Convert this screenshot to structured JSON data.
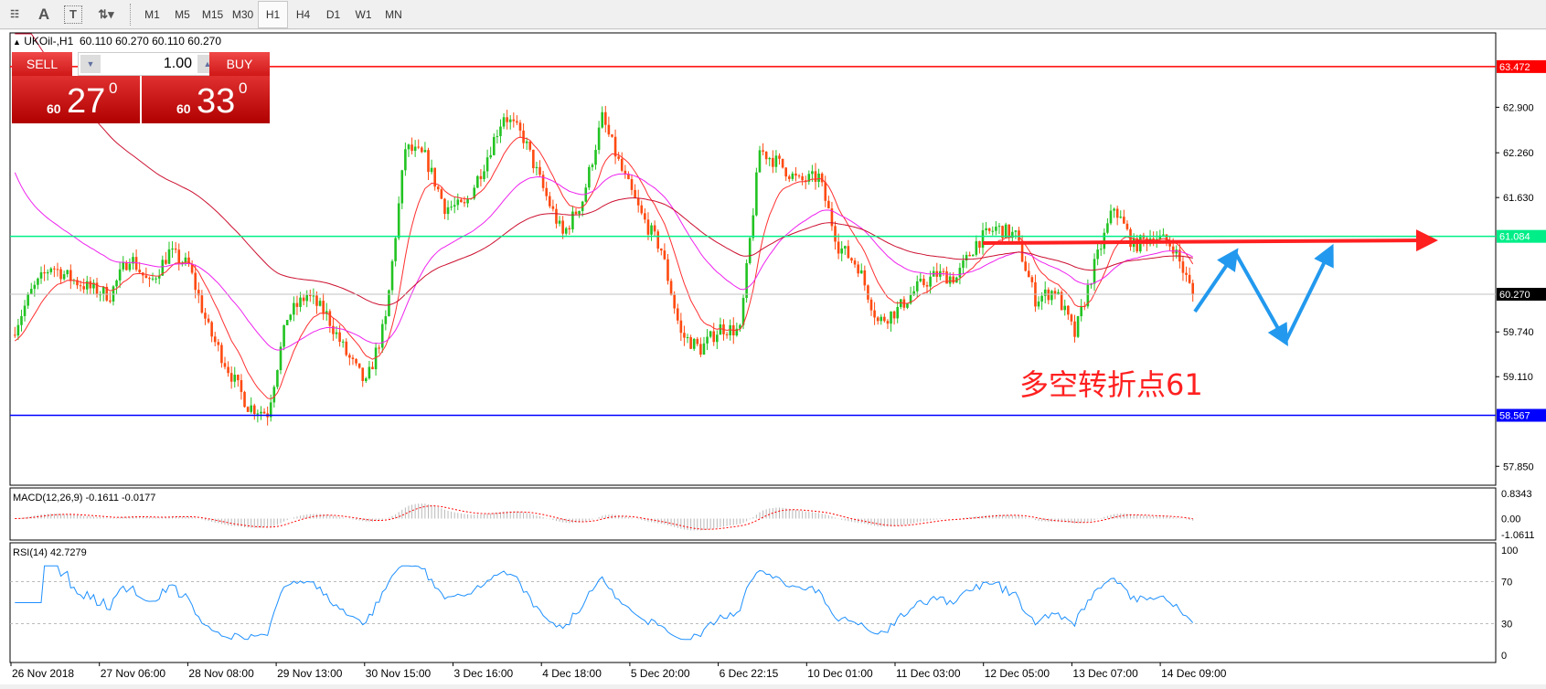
{
  "toolbar": {
    "icons": [
      "periods-separator-icon",
      "text-icon",
      "text-label-icon",
      "arrows-icon"
    ],
    "timeframes": [
      "M1",
      "M5",
      "M15",
      "M30",
      "H1",
      "H4",
      "D1",
      "W1",
      "MN"
    ],
    "active": "H1"
  },
  "chart_header": {
    "symbol": "UKOil-,H1",
    "ohlc": "60.110 60.270 60.110 60.270"
  },
  "trade_panel": {
    "sell_label": "SELL",
    "buy_label": "BUY",
    "lot": "1.00",
    "sell_price": {
      "big_prefix": "60",
      "main": "27",
      "sup": "0"
    },
    "buy_price": {
      "big_prefix": "60",
      "main": "33",
      "sup": "0"
    }
  },
  "price_axis": {
    "ticks": [
      "62.900",
      "62.260",
      "61.630",
      "59.740",
      "59.110",
      "57.850"
    ]
  },
  "levels": [
    {
      "value": 63.472,
      "label": "63.472",
      "color": "#ff0000"
    },
    {
      "value": 61.084,
      "label": "61.084",
      "color": "#00ee88"
    },
    {
      "value": 60.27,
      "label": "60.270",
      "color": "#000000",
      "line": "#c0c0c0"
    },
    {
      "value": 58.567,
      "label": "58.567",
      "color": "#0000ff"
    }
  ],
  "time_axis": [
    "26 Nov 2018",
    "27 Nov 06:00",
    "28 Nov 08:00",
    "29 Nov 13:00",
    "30 Nov 15:00",
    "3 Dec 16:00",
    "4 Dec 18:00",
    "5 Dec 20:00",
    "6 Dec 22:15",
    "10 Dec 01:00",
    "11 Dec 03:00",
    "12 Dec 05:00",
    "13 Dec 07:00",
    "14 Dec 09:00"
  ],
  "macd": {
    "label": "MACD(12,26,9) -0.1611 -0.0177",
    "ticks": [
      "0.8343",
      "0.00",
      "-1.0611"
    ]
  },
  "rsi": {
    "label": "RSI(14) 42.7279",
    "ticks": [
      "100",
      "70",
      "30",
      "0"
    ]
  },
  "annotation": {
    "text": "多空转折点61",
    "color": "#ff2020",
    "arrow_color": "#2299ee"
  },
  "chart_data": {
    "type": "candlestick",
    "symbol": "UKOil-",
    "timeframe": "H1",
    "closes_sampled": [
      59.7,
      60.3,
      60.67,
      60.49,
      60.35,
      60.26,
      60.81,
      60.4,
      60.86,
      60.67,
      59.78,
      59.22,
      58.7,
      58.6,
      59.95,
      60.26,
      59.98,
      59.43,
      59.0,
      59.9,
      62.33,
      62.2,
      61.5,
      61.5,
      62.1,
      62.8,
      62.47,
      61.75,
      61.1,
      61.6,
      62.75,
      62.0,
      61.37,
      60.9,
      59.7,
      59.5,
      59.8,
      59.75,
      62.3,
      62.1,
      61.85,
      61.92,
      60.95,
      60.67,
      59.88,
      60.05,
      60.36,
      60.55,
      60.5,
      61.0,
      61.2,
      61.09,
      60.2,
      60.33,
      59.7,
      60.67,
      61.5,
      60.95,
      61.1,
      60.95,
      60.27
    ],
    "ylim": [
      57.55,
      63.75
    ],
    "colors": {
      "up": "#22c322",
      "down": "#ff4a10",
      "ma_fast": "#ff3030",
      "ma_mid": "#ee22ee",
      "ma_slow": "#cc1030"
    }
  }
}
